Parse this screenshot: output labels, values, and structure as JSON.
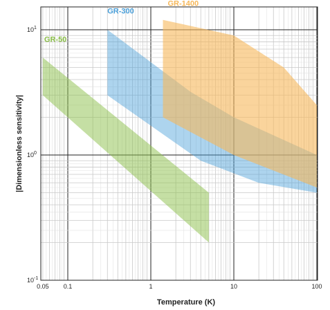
{
  "chart_data": {
    "type": "area",
    "xlabel": "Temperature (K)",
    "ylabel": "|Dimensionless sensitivity|",
    "x_scale": "log",
    "y_scale": "log",
    "xlim": [
      0.05,
      100
    ],
    "ylim": [
      0.1,
      30
    ],
    "x_tick_labels": [
      {
        "value": 0.05,
        "label": "0.05"
      },
      {
        "value": 0.1,
        "label": "0.1"
      },
      {
        "value": 1,
        "label": "1"
      },
      {
        "value": 10,
        "label": "10"
      },
      {
        "value": 100,
        "label": "100"
      }
    ],
    "y_tick_labels": [
      {
        "value": 0.1,
        "base": "10",
        "exp": "-1"
      },
      {
        "value": 1,
        "base": "10",
        "exp": "0"
      },
      {
        "value": 10,
        "base": "10",
        "exp": "1"
      }
    ],
    "grid": true,
    "series": [
      {
        "name": "GR-50",
        "color": "#8cc04a",
        "fill_opacity": 0.5,
        "upper": [
          [
            0.05,
            6
          ],
          [
            5,
            0.5
          ]
        ],
        "lower": [
          [
            0.05,
            3
          ],
          [
            5,
            0.2
          ]
        ],
        "label_at": [
          0.052,
          8.0
        ]
      },
      {
        "name": "GR-300",
        "color": "#4a9fd9",
        "fill_opacity": 0.45,
        "upper": [
          [
            0.3,
            10
          ],
          [
            3,
            3.2
          ],
          [
            10,
            2
          ],
          [
            100,
            1.0
          ]
        ],
        "lower": [
          [
            0.3,
            3
          ],
          [
            4,
            0.9
          ],
          [
            20,
            0.6
          ],
          [
            100,
            0.5
          ]
        ],
        "label_at": [
          0.3,
          13.5
        ]
      },
      {
        "name": "GR-1400",
        "color": "#f6b85a",
        "fill_opacity": 0.6,
        "upper": [
          [
            1.4,
            12
          ],
          [
            10,
            9
          ],
          [
            40,
            5
          ],
          [
            100,
            2.5
          ]
        ],
        "lower": [
          [
            1.4,
            2
          ],
          [
            10,
            1.0
          ],
          [
            100,
            0.55
          ]
        ],
        "label_at": [
          1.6,
          15.5
        ]
      }
    ]
  }
}
